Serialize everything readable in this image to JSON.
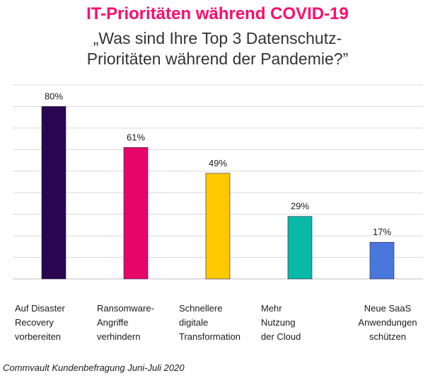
{
  "title": "IT-Prioritäten während COVID-19",
  "subtitle_line1": "„Was sind Ihre Top 3 Datenschutz-",
  "subtitle_line2": "Prioritäten während der Pandemie?”",
  "footer": "Commvault Kundenbefragung Juni-Juli 2020",
  "colors": {
    "title": "#ff0a6c",
    "grid": "#d9d9d9"
  },
  "chart_data": {
    "type": "bar",
    "categories": [
      [
        "Auf Disaster",
        "Recovery",
        "vorbereiten"
      ],
      [
        "Ransomware-",
        "Angriffe",
        "verhindern"
      ],
      [
        "Schnellere",
        "digitale",
        "Transformation"
      ],
      [
        "Mehr",
        "Nutzung",
        "der Cloud"
      ],
      [
        "Neue SaaS",
        "Anwendungen",
        "schützen"
      ]
    ],
    "values": [
      80,
      61,
      49,
      29,
      17
    ],
    "value_labels": [
      "80%",
      "61%",
      "49%",
      "29%",
      "17%"
    ],
    "colors": [
      "#2a0550",
      "#e8056a",
      "#ffc800",
      "#0ab8a8",
      "#4a77dc"
    ],
    "ylim": [
      0,
      80
    ],
    "grid": true,
    "legend": "none"
  }
}
